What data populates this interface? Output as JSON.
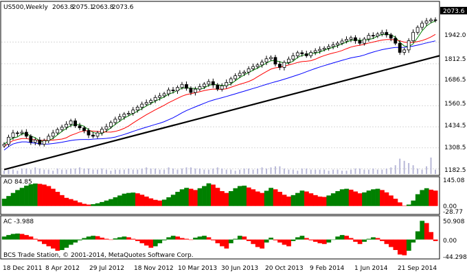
{
  "chart_data": [
    {
      "type": "candlestick",
      "panel": "price",
      "symbol_label": "US500,Weekly",
      "ohlc_header": [
        "2063.8",
        "2075.1",
        "2063.8",
        "2073.6"
      ],
      "current_price": "2073.6",
      "y_ticks": [
        "1942.0",
        "1812.5",
        "1686.5",
        "1560.5",
        "1434.5",
        "1308.5",
        "1182.5"
      ],
      "y_tick_values": [
        1942.0,
        1812.5,
        1686.5,
        1560.5,
        1434.5,
        1308.5,
        1182.5
      ],
      "ylim": [
        1160,
        2120
      ],
      "series": [
        {
          "name": "",
          "values": [
            1330,
            1372,
            1398,
            1395,
            1402,
            1378,
            1342,
            1355,
            1330,
            1352,
            1378,
            1398,
            1418,
            1432,
            1450,
            1470,
            1440,
            1428,
            1412,
            1385,
            1378,
            1398,
            1420,
            1435,
            1460,
            1480,
            1495,
            1510,
            1515,
            1535,
            1552,
            1570,
            1580,
            1592,
            1610,
            1620,
            1632,
            1655,
            1650,
            1670,
            1688,
            1665,
            1640,
            1660,
            1675,
            1690,
            1705,
            1685,
            1660,
            1680,
            1700,
            1722,
            1740,
            1755,
            1762,
            1782,
            1795,
            1805,
            1822,
            1842,
            1850,
            1810,
            1790,
            1820,
            1840,
            1860,
            1878,
            1872,
            1860,
            1880,
            1890,
            1898,
            1905,
            1915,
            1925,
            1935,
            1948,
            1958,
            1968,
            1950,
            1935,
            1960,
            1982,
            1978,
            1990,
            2000,
            1985,
            1965,
            1935,
            1880,
            1895,
            1950,
            2000,
            2030,
            2055,
            2068,
            2075,
            2073.6
          ]
        }
      ],
      "trendline": [
        [
          0,
          1178
        ],
        [
          97,
          1860
        ]
      ],
      "moving_averages": [
        {
          "name": "",
          "color": "#008000"
        },
        {
          "name": "",
          "color": "#ff0000"
        },
        {
          "name": "",
          "color": "#0000ff"
        }
      ]
    },
    {
      "type": "bar",
      "panel": "volume",
      "values": [
        3,
        4,
        4,
        3,
        5,
        5,
        4,
        6,
        5,
        4,
        4,
        3,
        5,
        4,
        4,
        5,
        5,
        6,
        5,
        5,
        4,
        4,
        5,
        4,
        3,
        4,
        4,
        4,
        5,
        4,
        4,
        5,
        6,
        5,
        5,
        4,
        4,
        6,
        5,
        4,
        5,
        6,
        6,
        5,
        5,
        4,
        4,
        5,
        6,
        5,
        4,
        4,
        3,
        4,
        5,
        5,
        4,
        5,
        6,
        5,
        6,
        7,
        7,
        5,
        4,
        4,
        3,
        5,
        5,
        4,
        4,
        4,
        4,
        3,
        4,
        4,
        3,
        3,
        4,
        5,
        5,
        4,
        4,
        5,
        4,
        4,
        5,
        6,
        8,
        14,
        12,
        10,
        8,
        5,
        4,
        7,
        15,
        4
      ]
    },
    {
      "type": "bar",
      "panel": "AO",
      "label": "AO 84.85",
      "y_ticks": [
        "145.08",
        "0.00",
        "-28.77"
      ],
      "y_tick_values": [
        145.08,
        0.0,
        -28.77
      ],
      "ylim": [
        -35,
        150
      ],
      "values": [
        40,
        55,
        72,
        88,
        100,
        112,
        120,
        124,
        122,
        118,
        110,
        95,
        78,
        60,
        45,
        38,
        30,
        20,
        12,
        8,
        10,
        15,
        22,
        30,
        38,
        48,
        58,
        68,
        72,
        74,
        70,
        62,
        52,
        42,
        34,
        30,
        35,
        48,
        62,
        78,
        92,
        100,
        95,
        88,
        98,
        110,
        125,
        118,
        100,
        82,
        72,
        82,
        98,
        110,
        112,
        102,
        92,
        80,
        72,
        84,
        100,
        92,
        78,
        62,
        52,
        60,
        72,
        85,
        80,
        70,
        60,
        52,
        50,
        58,
        70,
        82,
        92,
        95,
        90,
        80,
        70,
        75,
        85,
        92,
        95,
        88,
        75,
        58,
        40,
        20,
        2,
        8,
        30,
        65,
        88,
        98,
        90,
        84.85
      ],
      "colors_pos_green": true
    },
    {
      "type": "bar",
      "panel": "AC",
      "label": "AC -3.988",
      "y_ticks": [
        "50.908",
        "0.00",
        "-44.298"
      ],
      "y_tick_values": [
        50.908,
        0.0,
        -44.298
      ],
      "ylim": [
        -50,
        58
      ],
      "values": [
        8,
        12,
        15,
        16,
        15,
        12,
        8,
        2,
        -5,
        -12,
        -18,
        -24,
        -30,
        -28,
        -22,
        -14,
        -8,
        -2,
        4,
        8,
        10,
        9,
        5,
        2,
        0,
        3,
        6,
        8,
        6,
        2,
        -4,
        -10,
        -16,
        -22,
        -18,
        -10,
        -2,
        6,
        10,
        8,
        4,
        2,
        -1,
        5,
        8,
        10,
        6,
        -2,
        -10,
        -18,
        -24,
        -10,
        2,
        10,
        8,
        -4,
        -12,
        -20,
        -24,
        -8,
        5,
        -2,
        -8,
        -14,
        -18,
        -4,
        6,
        10,
        4,
        -2,
        -6,
        -10,
        -12,
        -8,
        0,
        8,
        12,
        10,
        4,
        -6,
        -12,
        -6,
        2,
        6,
        4,
        -4,
        -12,
        -20,
        -28,
        -40,
        -42,
        -30,
        -8,
        22,
        50,
        44,
        20,
        -3.988
      ]
    }
  ],
  "x_axis_labels": [
    "18 Dec 2011",
    "8 Apr 2012",
    "29 Jul 2012",
    "18 Nov 2012",
    "10 Mar 2013",
    "30 Jun 2013",
    "20 Oct 2013",
    "9 Feb 2014",
    "1 Jun 2014",
    "21 Sep 2014"
  ],
  "copyright": "BCS Trade Station, © 2001-2014, MetaQuotes Software Corp."
}
